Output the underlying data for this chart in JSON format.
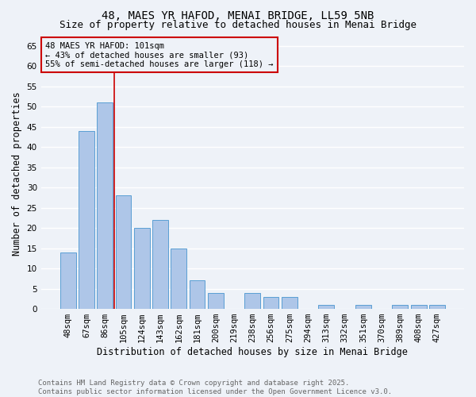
{
  "title": "48, MAES YR HAFOD, MENAI BRIDGE, LL59 5NB",
  "subtitle": "Size of property relative to detached houses in Menai Bridge",
  "xlabel": "Distribution of detached houses by size in Menai Bridge",
  "ylabel": "Number of detached properties",
  "categories": [
    "48sqm",
    "67sqm",
    "86sqm",
    "105sqm",
    "124sqm",
    "143sqm",
    "162sqm",
    "181sqm",
    "200sqm",
    "219sqm",
    "238sqm",
    "256sqm",
    "275sqm",
    "294sqm",
    "313sqm",
    "332sqm",
    "351sqm",
    "370sqm",
    "389sqm",
    "408sqm",
    "427sqm"
  ],
  "values": [
    14,
    44,
    51,
    28,
    20,
    22,
    15,
    7,
    4,
    0,
    4,
    3,
    3,
    0,
    1,
    0,
    1,
    0,
    1,
    1,
    1
  ],
  "bar_color": "#aec6e8",
  "bar_edge_color": "#5a9fd4",
  "ylim_max": 67,
  "yticks": [
    0,
    5,
    10,
    15,
    20,
    25,
    30,
    35,
    40,
    45,
    50,
    55,
    60,
    65
  ],
  "red_line_index": 3,
  "annotation_line1": "48 MAES YR HAFOD: 101sqm",
  "annotation_line2": "← 43% of detached houses are smaller (93)",
  "annotation_line3": "55% of semi-detached houses are larger (118) →",
  "annotation_box_color": "#cc0000",
  "footer_line1": "Contains HM Land Registry data © Crown copyright and database right 2025.",
  "footer_line2": "Contains public sector information licensed under the Open Government Licence v3.0.",
  "background_color": "#eef2f8",
  "grid_color": "#ffffff",
  "title_fontsize": 10,
  "subtitle_fontsize": 9,
  "axis_label_fontsize": 8.5,
  "tick_fontsize": 7.5,
  "annotation_fontsize": 7.5,
  "footer_fontsize": 6.5
}
